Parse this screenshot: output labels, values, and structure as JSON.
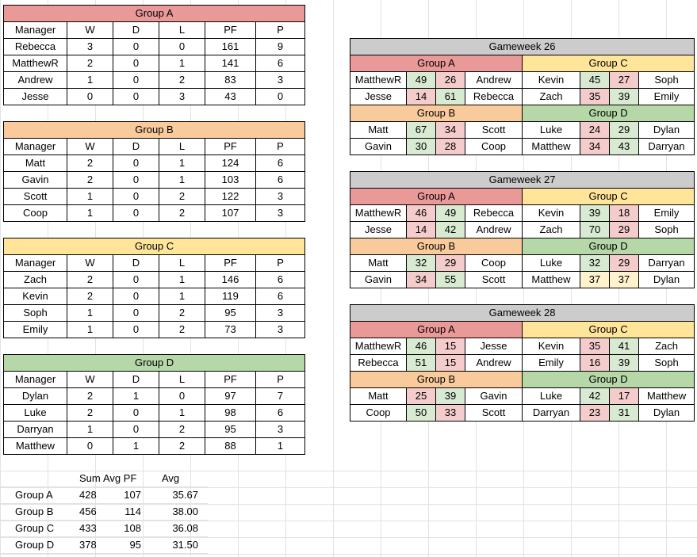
{
  "groups": [
    {
      "title": "Group A",
      "color": "#ea9999",
      "headers": [
        "Manager",
        "W",
        "D",
        "L",
        "PF",
        "P"
      ],
      "rows": [
        [
          "Rebecca",
          "3",
          "0",
          "0",
          "161",
          "9"
        ],
        [
          "MatthewR",
          "2",
          "0",
          "1",
          "141",
          "6"
        ],
        [
          "Andrew",
          "1",
          "0",
          "2",
          "83",
          "3"
        ],
        [
          "Jesse",
          "0",
          "0",
          "3",
          "43",
          "0"
        ]
      ]
    },
    {
      "title": "Group B",
      "color": "#f9cb9c",
      "headers": [
        "Manager",
        "W",
        "D",
        "L",
        "PF",
        "P"
      ],
      "rows": [
        [
          "Matt",
          "2",
          "0",
          "1",
          "124",
          "6"
        ],
        [
          "Gavin",
          "2",
          "0",
          "1",
          "103",
          "6"
        ],
        [
          "Scott",
          "1",
          "0",
          "2",
          "122",
          "3"
        ],
        [
          "Coop",
          "1",
          "0",
          "2",
          "107",
          "3"
        ]
      ]
    },
    {
      "title": "Group C",
      "color": "#ffe599",
      "headers": [
        "Manager",
        "W",
        "D",
        "L",
        "PF",
        "P"
      ],
      "rows": [
        [
          "Zach",
          "2",
          "0",
          "1",
          "146",
          "6"
        ],
        [
          "Kevin",
          "2",
          "0",
          "1",
          "119",
          "6"
        ],
        [
          "Soph",
          "1",
          "0",
          "2",
          "95",
          "3"
        ],
        [
          "Emily",
          "1",
          "0",
          "2",
          "73",
          "3"
        ]
      ]
    },
    {
      "title": "Group D",
      "color": "#b6d7a8",
      "headers": [
        "Manager",
        "W",
        "D",
        "L",
        "PF",
        "P"
      ],
      "rows": [
        [
          "Dylan",
          "2",
          "1",
          "0",
          "97",
          "7"
        ],
        [
          "Luke",
          "2",
          "0",
          "1",
          "98",
          "6"
        ],
        [
          "Darryan",
          "1",
          "0",
          "2",
          "95",
          "3"
        ],
        [
          "Matthew",
          "0",
          "1",
          "2",
          "88",
          "1"
        ]
      ]
    }
  ],
  "gameweeks": [
    {
      "title": "Gameweek 26",
      "blocks": [
        {
          "left": {
            "group": "Group A",
            "matches": [
              [
                "MatthewR",
                "49",
                "26",
                "Andrew"
              ],
              [
                "Jesse",
                "14",
                "61",
                "Rebecca"
              ]
            ]
          },
          "right": {
            "group": "Group C",
            "matches": [
              [
                "Kevin",
                "45",
                "27",
                "Soph"
              ],
              [
                "Zach",
                "35",
                "39",
                "Emily"
              ]
            ]
          }
        },
        {
          "left": {
            "group": "Group B",
            "matches": [
              [
                "Matt",
                "67",
                "34",
                "Scott"
              ],
              [
                "Gavin",
                "30",
                "28",
                "Coop"
              ]
            ]
          },
          "right": {
            "group": "Group D",
            "matches": [
              [
                "Luke",
                "24",
                "29",
                "Dylan"
              ],
              [
                "Matthew",
                "34",
                "43",
                "Darryan"
              ]
            ]
          }
        }
      ]
    },
    {
      "title": "Gameweek 27",
      "blocks": [
        {
          "left": {
            "group": "Group A",
            "matches": [
              [
                "MatthewR",
                "46",
                "49",
                "Rebecca"
              ],
              [
                "Jesse",
                "14",
                "42",
                "Andrew"
              ]
            ]
          },
          "right": {
            "group": "Group C",
            "matches": [
              [
                "Kevin",
                "39",
                "18",
                "Emily"
              ],
              [
                "Zach",
                "70",
                "29",
                "Soph"
              ]
            ]
          }
        },
        {
          "left": {
            "group": "Group B",
            "matches": [
              [
                "Matt",
                "32",
                "29",
                "Coop"
              ],
              [
                "Gavin",
                "34",
                "55",
                "Scott"
              ]
            ]
          },
          "right": {
            "group": "Group D",
            "matches": [
              [
                "Luke",
                "32",
                "29",
                "Darryan"
              ],
              [
                "Matthew",
                "37",
                "37",
                "Dylan"
              ]
            ]
          }
        }
      ]
    },
    {
      "title": "Gameweek 28",
      "blocks": [
        {
          "left": {
            "group": "Group A",
            "matches": [
              [
                "MatthewR",
                "46",
                "15",
                "Jesse"
              ],
              [
                "Rebecca",
                "51",
                "15",
                "Andrew"
              ]
            ]
          },
          "right": {
            "group": "Group C",
            "matches": [
              [
                "Kevin",
                "35",
                "41",
                "Zach"
              ],
              [
                "Emily",
                "16",
                "39",
                "Soph"
              ]
            ]
          }
        },
        {
          "left": {
            "group": "Group B",
            "matches": [
              [
                "Matt",
                "25",
                "39",
                "Gavin"
              ],
              [
                "Coop",
                "50",
                "33",
                "Scott"
              ]
            ]
          },
          "right": {
            "group": "Group D",
            "matches": [
              [
                "Luke",
                "42",
                "17",
                "Matthew"
              ],
              [
                "Darryan",
                "23",
                "31",
                "Dylan"
              ]
            ]
          }
        }
      ]
    }
  ],
  "summary": {
    "headers": [
      "",
      "Sum",
      "Avg PF",
      "Avg"
    ],
    "rows": [
      [
        "Group A",
        "428",
        "107",
        "35.67"
      ],
      [
        "Group B",
        "456",
        "114",
        "38.00"
      ],
      [
        "Group C",
        "433",
        "108",
        "36.08"
      ],
      [
        "Group D",
        "378",
        "95",
        "31.50"
      ]
    ]
  },
  "colors": {
    "group_a": "#ea9999",
    "group_b": "#f9cb9c",
    "group_c": "#ffe599",
    "group_d": "#b6d7a8",
    "gameweek_header": "#cccccc",
    "win": "#d9ead3",
    "loss": "#f4cccc",
    "draw": "#fff2cc"
  }
}
